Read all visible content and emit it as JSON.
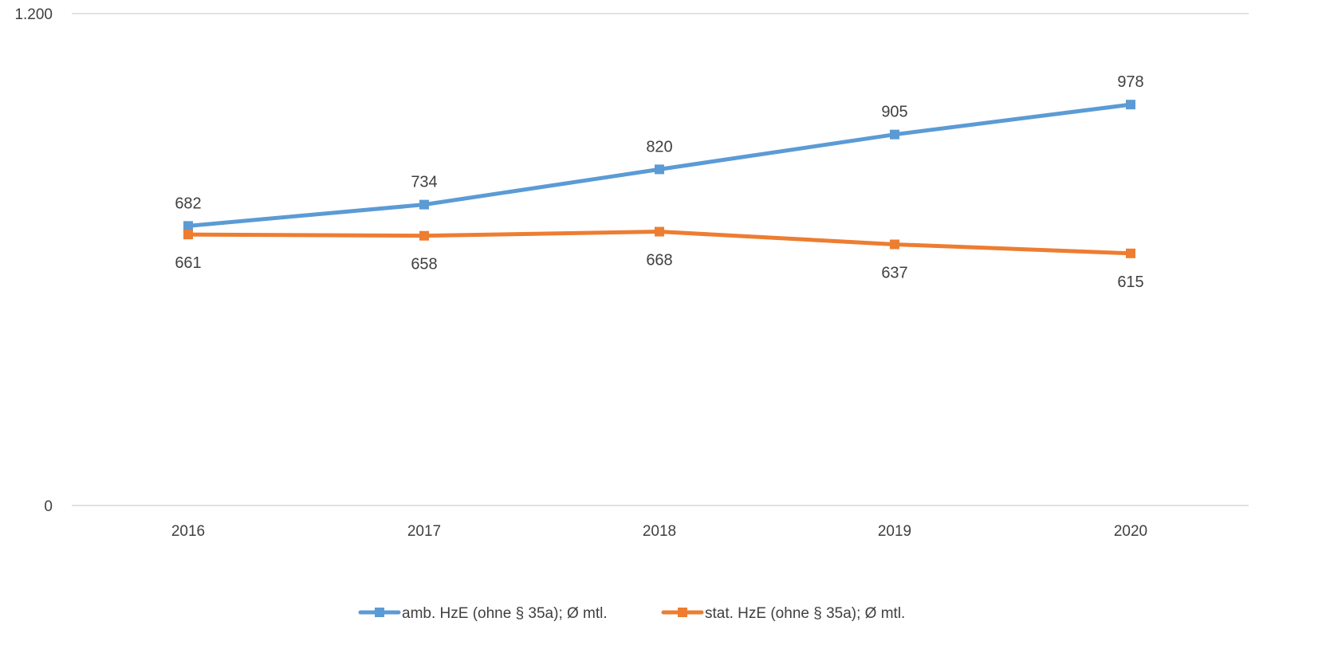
{
  "chart_data": {
    "type": "line",
    "title": "",
    "xlabel": "",
    "ylabel": "",
    "categories": [
      "2016",
      "2017",
      "2018",
      "2019",
      "2020"
    ],
    "ylim": [
      0,
      1200
    ],
    "y_ticks": [
      {
        "value": 0,
        "label": "0"
      },
      {
        "value": 1200,
        "label": "1.200"
      }
    ],
    "grid": true,
    "legend_position": "bottom",
    "series": [
      {
        "name": "amb. HzE (ohne § 35a); Ø mtl.",
        "color": "#5B9BD5",
        "marker": "square",
        "values": [
          682,
          734,
          820,
          905,
          978
        ],
        "labels": [
          "682",
          "734",
          "820",
          "905",
          "978"
        ],
        "label_position": "above"
      },
      {
        "name": "stat. HzE (ohne § 35a); Ø mtl.",
        "color": "#ED7D31",
        "marker": "square",
        "values": [
          661,
          658,
          668,
          637,
          615
        ],
        "labels": [
          "661",
          "658",
          "668",
          "637",
          "615"
        ],
        "label_position": "below"
      }
    ]
  }
}
